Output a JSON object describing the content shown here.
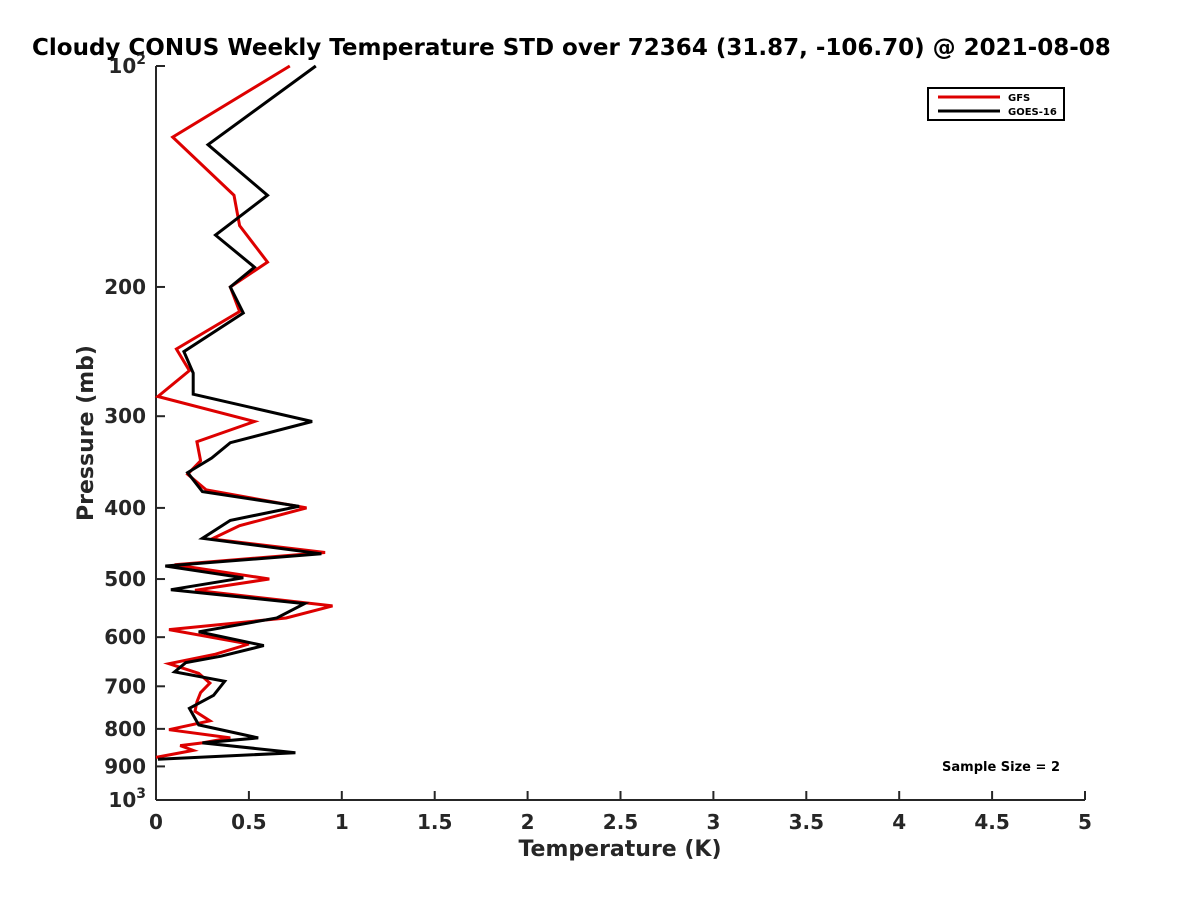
{
  "chart_data": {
    "type": "line",
    "title": "Cloudy CONUS Weekly Temperature STD over 72364 (31.87, -106.70) @ 2021-08-08",
    "xlabel": "Temperature (K)",
    "ylabel": "Pressure (mb)",
    "xlim": [
      0,
      5
    ],
    "ylim": [
      100,
      1000
    ],
    "y_scale": "log",
    "y_reversed": true,
    "x_ticks": [
      0,
      0.5,
      1,
      1.5,
      2,
      2.5,
      3,
      3.5,
      4,
      4.5,
      5
    ],
    "x_tick_labels": [
      "0",
      "0.5",
      "1",
      "1.5",
      "2",
      "2.5",
      "3",
      "3.5",
      "4",
      "4.5",
      "5"
    ],
    "y_ticks": [
      {
        "value": 100,
        "base": "10",
        "exp": "2"
      },
      {
        "value": 200,
        "label": "200"
      },
      {
        "value": 300,
        "label": "300"
      },
      {
        "value": 400,
        "label": "400"
      },
      {
        "value": 500,
        "label": "500"
      },
      {
        "value": 600,
        "label": "600"
      },
      {
        "value": 700,
        "label": "700"
      },
      {
        "value": 800,
        "label": "800"
      },
      {
        "value": 900,
        "label": "900"
      },
      {
        "value": 1000,
        "base": "10",
        "exp": "3"
      }
    ],
    "grid": false,
    "legend_position": "top-right",
    "annotation": "Sample Size = 2",
    "series": [
      {
        "name": "GFS",
        "color": "#dd0000",
        "points": [
          [
            0.72,
            100
          ],
          [
            0.09,
            125
          ],
          [
            0.42,
            150
          ],
          [
            0.45,
            165
          ],
          [
            0.6,
            185
          ],
          [
            0.4,
            200
          ],
          [
            0.45,
            216
          ],
          [
            0.11,
            243
          ],
          [
            0.18,
            260
          ],
          [
            0.01,
            282
          ],
          [
            0.53,
            305
          ],
          [
            0.22,
            325
          ],
          [
            0.24,
            345
          ],
          [
            0.17,
            360
          ],
          [
            0.27,
            378
          ],
          [
            0.81,
            400
          ],
          [
            0.45,
            423
          ],
          [
            0.3,
            441
          ],
          [
            0.91,
            460
          ],
          [
            0.1,
            478
          ],
          [
            0.61,
            500
          ],
          [
            0.21,
            518
          ],
          [
            0.95,
            544
          ],
          [
            0.7,
            565
          ],
          [
            0.07,
            586
          ],
          [
            0.5,
            613
          ],
          [
            0.32,
            633
          ],
          [
            0.07,
            652
          ],
          [
            0.23,
            672
          ],
          [
            0.29,
            693
          ],
          [
            0.24,
            714
          ],
          [
            0.22,
            735
          ],
          [
            0.21,
            757
          ],
          [
            0.29,
            780
          ],
          [
            0.07,
            802
          ],
          [
            0.4,
            823
          ],
          [
            0.25,
            836
          ],
          [
            0.13,
            843
          ],
          [
            0.2,
            856
          ],
          [
            0.0,
            875
          ]
        ]
      },
      {
        "name": "GOES-16",
        "color": "#000000",
        "points": [
          [
            0.86,
            100
          ],
          [
            0.28,
            128
          ],
          [
            0.6,
            150
          ],
          [
            0.32,
            170
          ],
          [
            0.53,
            188
          ],
          [
            0.4,
            200
          ],
          [
            0.47,
            217
          ],
          [
            0.15,
            245
          ],
          [
            0.2,
            262
          ],
          [
            0.2,
            280
          ],
          [
            0.84,
            305
          ],
          [
            0.4,
            326
          ],
          [
            0.3,
            342
          ],
          [
            0.17,
            358
          ],
          [
            0.25,
            380
          ],
          [
            0.77,
            398
          ],
          [
            0.4,
            416
          ],
          [
            0.25,
            440
          ],
          [
            0.89,
            462
          ],
          [
            0.05,
            480
          ],
          [
            0.47,
            498
          ],
          [
            0.08,
            517
          ],
          [
            0.8,
            540
          ],
          [
            0.65,
            565
          ],
          [
            0.23,
            590
          ],
          [
            0.58,
            616
          ],
          [
            0.35,
            637
          ],
          [
            0.16,
            650
          ],
          [
            0.1,
            669
          ],
          [
            0.37,
            689
          ],
          [
            0.31,
            720
          ],
          [
            0.18,
            750
          ],
          [
            0.23,
            790
          ],
          [
            0.55,
            823
          ],
          [
            0.25,
            836
          ],
          [
            0.75,
            862
          ],
          [
            0.01,
            880
          ]
        ]
      }
    ]
  }
}
